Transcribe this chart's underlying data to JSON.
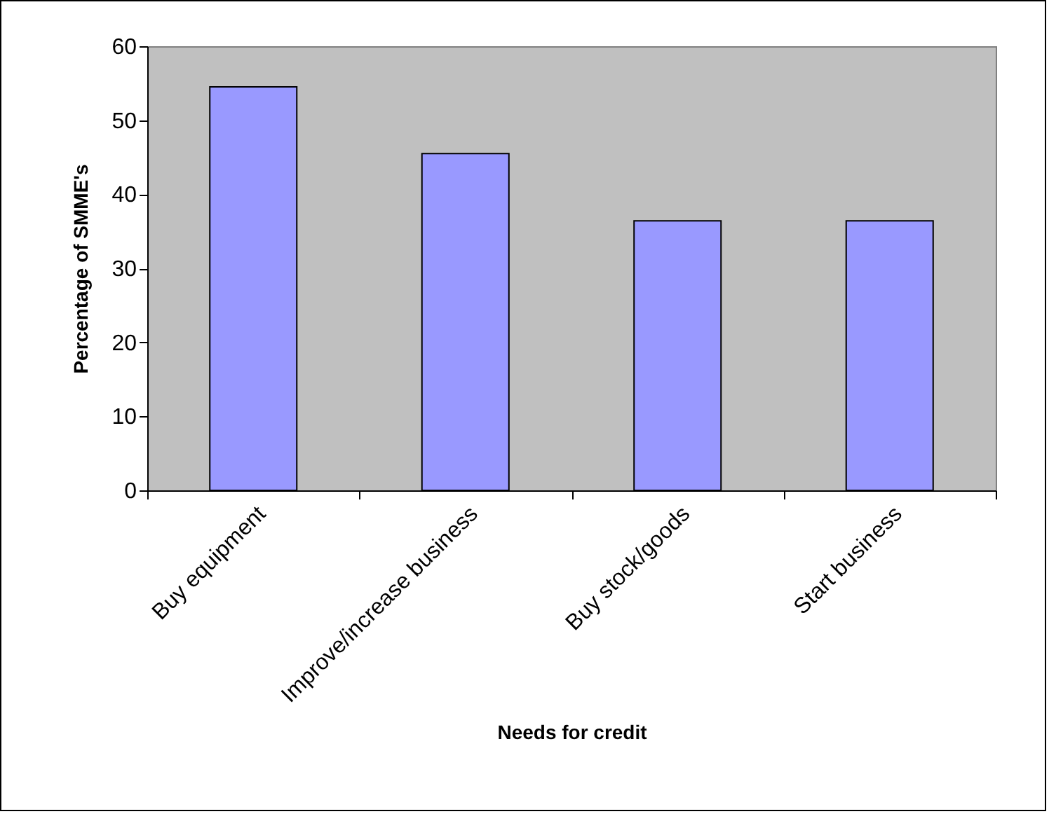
{
  "chart_data": {
    "type": "bar",
    "xlabel": "Needs for credit",
    "ylabel": "Percentage of SMME's",
    "categories": [
      "Buy equipment",
      "Improve/increase business",
      "Buy stock/goods",
      "Start business"
    ],
    "values": [
      54.5,
      45.5,
      36.4,
      36.4
    ],
    "color": "#9999ff",
    "ylim": [
      0,
      60
    ],
    "yticks": [
      0,
      10,
      20,
      30,
      40,
      50,
      60
    ],
    "grid": false,
    "legend": false
  }
}
